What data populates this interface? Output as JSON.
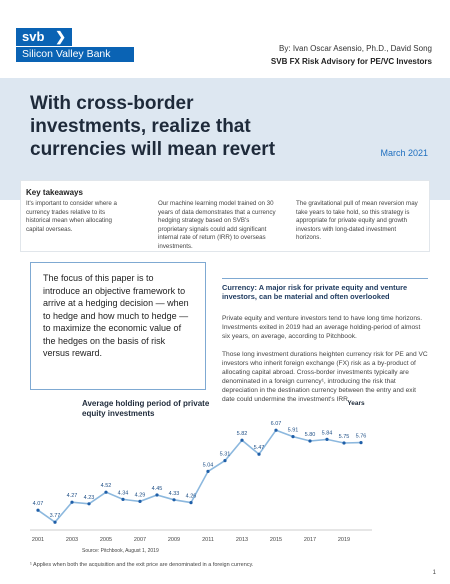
{
  "header": {
    "logo_mark": "svb",
    "logo_name": "Silicon Valley Bank",
    "authors": "By: Ivan Oscar Asensio, Ph.D., David Song",
    "affiliation": "SVB FX Risk Advisory for PE/VC Investors"
  },
  "title": "With cross-border investments, realize that currencies will mean revert",
  "date": "March 2021",
  "takeaways": {
    "heading": "Key takeaways",
    "items": [
      "It's important to consider where a currency trades relative to its historical mean when allocating capital overseas.",
      "Our machine learning model trained on 30 years of data demonstrates that a currency hedging strategy based on SVB's proprietary signals could add significant internal rate of return (IRR) to overseas investments.",
      "The gravitational pull of mean reversion may take years to take hold, so this strategy is appropriate for private equity and growth investors with long-dated investment horizons."
    ]
  },
  "quote": "The focus of this paper is to introduce an objective framework to arrive at a hedging decision — when to hedge and how much to hedge — to maximize the economic value of the hedges on the basis of risk versus reward.",
  "section": {
    "heading": "Currency: A major risk for private equity and venture investors, can be material and often overlooked",
    "paragraphs": [
      "Private equity and venture investors tend to have long time horizons. Investments exited in 2019 had an average holding-period of almost six years, on average, according to Pitchbook.",
      "Those long investment durations heighten currency risk for PE and VC investors who inherit foreign exchange (FX) risk as a by-product of allocating capital abroad. Cross-border investments typically are denominated in a foreign currency¹, introducing the risk that depreciation in the destination currency between the entry and exit date could undermine the investment's IRR."
    ]
  },
  "chart_data": {
    "type": "line",
    "title": "Average holding period of private equity investments",
    "x_label": "Years",
    "categories": [
      "2001",
      null,
      "2003",
      null,
      "2005",
      null,
      "2007",
      null,
      "2009",
      null,
      "2011",
      null,
      "2013",
      null,
      "2015",
      null,
      "2017",
      null,
      "2019",
      null
    ],
    "values": [
      4.07,
      3.77,
      4.27,
      4.23,
      4.52,
      4.34,
      4.29,
      4.45,
      4.33,
      4.26,
      5.04,
      5.31,
      5.82,
      5.47,
      6.07,
      5.91,
      5.8,
      5.84,
      5.75,
      5.76
    ],
    "value_labels": [
      "4.07",
      "3.77",
      "4.27",
      "4.23",
      "4.52",
      "4.34",
      "4.29",
      "4.45",
      "4.33",
      "4.26",
      "5.04",
      "5.31",
      "5.82",
      "5.47",
      "6.07",
      "5.91",
      "5.80",
      "5.84",
      "5.75",
      "5.76"
    ],
    "ylim": [
      3.5,
      6.3
    ],
    "color": "#8cb8de",
    "marker_color": "#1f5fa8",
    "source": "Source: Pitchbook, August 1, 2019"
  },
  "footnote": "¹ Applies when both the acquisition and the exit price are denominated in a foreign currency.",
  "page_number": "1"
}
